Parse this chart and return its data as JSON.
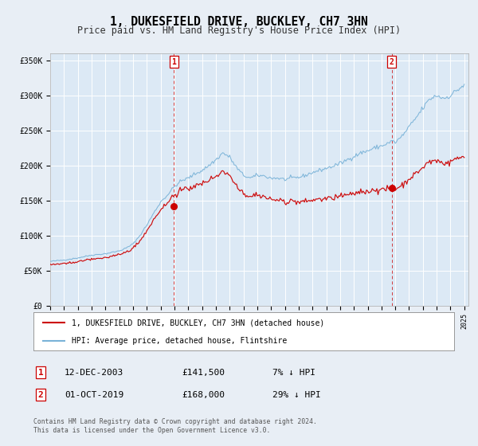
{
  "title": "1, DUKESFIELD DRIVE, BUCKLEY, CH7 3HN",
  "subtitle": "Price paid vs. HM Land Registry's House Price Index (HPI)",
  "background_color": "#e8eef5",
  "plot_bg_color": "#dce9f5",
  "grid_color": "#ffffff",
  "hpi_color": "#7ab3d8",
  "price_color": "#cc0000",
  "marker_color": "#cc0000",
  "ylim": [
    0,
    360000
  ],
  "yticks": [
    0,
    50000,
    100000,
    150000,
    200000,
    250000,
    300000,
    350000
  ],
  "ytick_labels": [
    "£0",
    "£50K",
    "£100K",
    "£150K",
    "£200K",
    "£250K",
    "£300K",
    "£350K"
  ],
  "xstart_year": 1995,
  "xend_year": 2025,
  "sale1_price": 141500,
  "sale1_x": 2003.96,
  "sale2_price": 168000,
  "sale2_x": 2019.75,
  "legend_line1": "1, DUKESFIELD DRIVE, BUCKLEY, CH7 3HN (detached house)",
  "legend_line2": "HPI: Average price, detached house, Flintshire",
  "table_row1": [
    "1",
    "12-DEC-2003",
    "£141,500",
    "7% ↓ HPI"
  ],
  "table_row2": [
    "2",
    "01-OCT-2019",
    "£168,000",
    "29% ↓ HPI"
  ],
  "footnote1": "Contains HM Land Registry data © Crown copyright and database right 2024.",
  "footnote2": "This data is licensed under the Open Government Licence v3.0.",
  "title_fontsize": 10.5,
  "subtitle_fontsize": 8.5
}
